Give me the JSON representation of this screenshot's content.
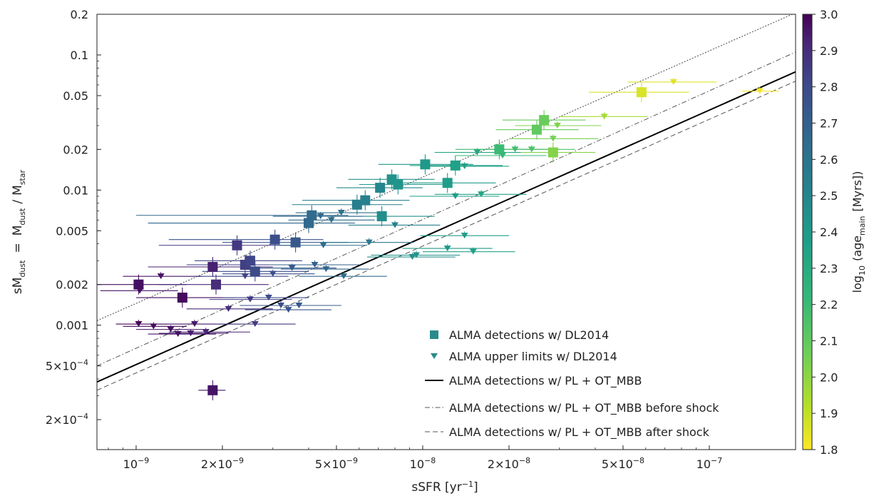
{
  "chart_data": {
    "type": "scatter",
    "xlabel": "sSFR [yr",
    "xlabel_sup": "−1",
    "xlabel_end": "]",
    "ylabel": {
      "a": "sM",
      "a_sub": "dust",
      "eq": "=",
      "b": "M",
      "b_sub": "dust",
      "slash": "/",
      "c": "M",
      "c_sub": "star"
    },
    "x_scale": "log",
    "y_scale": "log",
    "xlim": [
      7.3e-10,
      2e-07
    ],
    "ylim": [
      0.00012,
      0.2
    ],
    "x_ticks": [
      {
        "v": 1e-09,
        "base": "10",
        "sup": "−9",
        "coef": ""
      },
      {
        "v": 2e-09,
        "base": "10",
        "sup": "−9",
        "coef": "2×"
      },
      {
        "v": 5e-09,
        "base": "10",
        "sup": "−9",
        "coef": "5×"
      },
      {
        "v": 1e-08,
        "base": "10",
        "sup": "−8",
        "coef": ""
      },
      {
        "v": 2e-08,
        "base": "10",
        "sup": "−8",
        "coef": "2×"
      },
      {
        "v": 5e-08,
        "base": "10",
        "sup": "−8",
        "coef": "5×"
      },
      {
        "v": 1e-07,
        "base": "10",
        "sup": "−7",
        "coef": ""
      }
    ],
    "y_ticks": [
      {
        "v": 0.2,
        "label": "0.2"
      },
      {
        "v": 0.1,
        "label": "0.1"
      },
      {
        "v": 0.05,
        "label": "0.05"
      },
      {
        "v": 0.02,
        "label": "0.02"
      },
      {
        "v": 0.01,
        "label": "0.01"
      },
      {
        "v": 0.005,
        "label": "0.005"
      },
      {
        "v": 0.002,
        "label": "0.002"
      },
      {
        "v": 0.001,
        "label": "0.001"
      },
      {
        "v": 0.0005,
        "label": "5×10",
        "sup": "−4"
      },
      {
        "v": 0.0002,
        "label": "2×10",
        "sup": "−4"
      }
    ],
    "colorbar": {
      "label": "log",
      "label_sub": "10",
      "label_rest": "(age",
      "label_rest_sub": "main",
      "label_end": "[Myrs])",
      "min": 1.8,
      "max": 3.0,
      "colormap": "viridis_r",
      "ticks": [
        "3.0",
        "2.9",
        "2.8",
        "2.7",
        "2.6",
        "2.5",
        "2.4",
        "2.3",
        "2.2",
        "2.1",
        "2.0",
        "1.9",
        "1.8"
      ]
    },
    "lines": [
      {
        "name": "ALMA detections w/ PL + OT_MBB",
        "style": "solid",
        "color": "#000000",
        "points": [
          [
            7.3e-10,
            0.00038
          ],
          [
            2e-07,
            0.075
          ]
        ]
      },
      {
        "name": "ALMA detections w/ PL + OT_MBB before shock",
        "style": "dashdot",
        "color": "#555555",
        "points": [
          [
            7.3e-10,
            0.0005
          ],
          [
            2e-07,
            0.105
          ]
        ]
      },
      {
        "name": "ALMA detections w/ PL + OT_MBB after shock",
        "style": "dashed",
        "color": "#555555",
        "points": [
          [
            7.3e-10,
            0.00033
          ],
          [
            2e-07,
            0.064
          ]
        ]
      },
      {
        "name": "",
        "style": "dotted",
        "color": "#444444",
        "points": [
          [
            7.3e-10,
            0.00108
          ],
          [
            2e-07,
            0.205
          ]
        ]
      }
    ],
    "legend": {
      "placement": "lower-right",
      "entries": [
        {
          "marker": "square",
          "color": "#2a8a8a",
          "label": "ALMA detections w/ DL2014"
        },
        {
          "marker": "triangle",
          "color": "#2a8a8a",
          "label": "ALMA upper limits w/ DL2014"
        },
        {
          "marker": "solid",
          "label": "ALMA detections w/ PL + OT_MBB"
        },
        {
          "marker": "dashdot",
          "label": "ALMA detections w/ PL + OT_MBB before shock"
        },
        {
          "marker": "dashed",
          "label": "ALMA detections w/ PL + OT_MBB after shock"
        }
      ]
    },
    "series": [
      {
        "name": "ALMA detections w/ DL2014",
        "marker": "square",
        "points": [
          {
            "x": 1.02e-09,
            "y": 0.002,
            "c": 2.97,
            "xl": 7e-10,
            "xh": 1.5e-09
          },
          {
            "x": 1.45e-09,
            "y": 0.0016,
            "c": 2.98,
            "xl": 1e-09,
            "xh": 2.2e-09
          },
          {
            "x": 1.85e-09,
            "y": 0.0027,
            "c": 2.93,
            "xl": 1.1e-09,
            "xh": 3e-09
          },
          {
            "x": 1.9e-09,
            "y": 0.002,
            "c": 2.9,
            "xl": 1.2e-09,
            "xh": 2.9e-09
          },
          {
            "x": 2.25e-09,
            "y": 0.0039,
            "c": 2.86,
            "xl": 1.2e-09,
            "xh": 3.5e-09
          },
          {
            "x": 2.4e-09,
            "y": 0.0028,
            "c": 2.84,
            "xl": 1.5e-09,
            "xh": 3.6e-09
          },
          {
            "x": 2.5e-09,
            "y": 0.003,
            "c": 2.82,
            "xl": 1.6e-09,
            "xh": 3.8e-09
          },
          {
            "x": 2.6e-09,
            "y": 0.0025,
            "c": 2.8,
            "xl": 1.7e-09,
            "xh": 4e-09
          },
          {
            "x": 3.05e-09,
            "y": 0.0043,
            "c": 2.78,
            "xl": 1.3e-09,
            "xh": 4.5e-09
          },
          {
            "x": 3.6e-09,
            "y": 0.0041,
            "c": 2.74,
            "xl": 2e-09,
            "xh": 5.5e-09
          },
          {
            "x": 4.1e-09,
            "y": 0.0065,
            "c": 2.65,
            "xl": 1e-09,
            "xh": 5.5e-09
          },
          {
            "x": 4e-09,
            "y": 0.0057,
            "c": 2.66,
            "xl": 1.1e-09,
            "xh": 5.8e-09
          },
          {
            "x": 5.9e-09,
            "y": 0.0078,
            "c": 2.55,
            "xl": 3.5e-09,
            "xh": 8.5e-09
          },
          {
            "x": 6.3e-09,
            "y": 0.0084,
            "c": 2.53,
            "xl": 3.8e-09,
            "xh": 9e-09
          },
          {
            "x": 7.1e-09,
            "y": 0.0104,
            "c": 2.5,
            "xl": 5e-09,
            "xh": 1e-08
          },
          {
            "x": 7.2e-09,
            "y": 0.0064,
            "c": 2.46,
            "xl": 4.6e-09,
            "xh": 1.1e-08
          },
          {
            "x": 7.8e-09,
            "y": 0.012,
            "c": 2.44,
            "xl": 5.5e-09,
            "xh": 1.1e-08
          },
          {
            "x": 8.2e-09,
            "y": 0.011,
            "c": 2.42,
            "xl": 6e-09,
            "xh": 1.2e-08
          },
          {
            "x": 1.02e-08,
            "y": 0.0155,
            "c": 2.4,
            "xl": 7e-09,
            "xh": 1.5e-08
          },
          {
            "x": 1.22e-08,
            "y": 0.0113,
            "c": 2.38,
            "xl": 8.5e-09,
            "xh": 1.8e-08
          },
          {
            "x": 1.3e-08,
            "y": 0.0152,
            "c": 2.36,
            "xl": 9e-09,
            "xh": 1.9e-08
          },
          {
            "x": 1.85e-08,
            "y": 0.02,
            "c": 2.2,
            "xl": 1.3e-08,
            "xh": 2.6e-08
          },
          {
            "x": 2.5e-08,
            "y": 0.028,
            "c": 2.1,
            "xl": 1.8e-08,
            "xh": 3.5e-08
          },
          {
            "x": 2.65e-08,
            "y": 0.033,
            "c": 2.08,
            "xl": 1.9e-08,
            "xh": 3.7e-08
          },
          {
            "x": 2.85e-08,
            "y": 0.019,
            "c": 2.02,
            "xl": 2e-08,
            "xh": 4e-08
          },
          {
            "x": 5.8e-08,
            "y": 0.053,
            "c": 1.86,
            "xl": 3.8e-08,
            "xh": 8.5e-08
          },
          {
            "x": 1.85e-09,
            "y": 0.00033,
            "c": 2.96,
            "xl": 1.65e-09,
            "xh": 2.05e-09
          }
        ]
      },
      {
        "name": "ALMA upper limits w/ DL2014",
        "marker": "triangle",
        "points": [
          {
            "x": 1.03e-09,
            "y": 0.0018,
            "c": 2.97,
            "xl": 7.5e-10,
            "xh": 1.4e-09
          },
          {
            "x": 1.22e-09,
            "y": 0.0023,
            "c": 2.96,
            "xl": 9e-10,
            "xh": 1.7e-09
          },
          {
            "x": 1.02e-09,
            "y": 0.00102,
            "c": 2.99,
            "xl": 8.5e-10,
            "xh": 1.3e-09
          },
          {
            "x": 1.15e-09,
            "y": 0.00098,
            "c": 2.98,
            "xl": 9e-10,
            "xh": 1.5e-09
          },
          {
            "x": 1.32e-09,
            "y": 0.00093,
            "c": 2.97,
            "xl": 1e-09,
            "xh": 1.8e-09
          },
          {
            "x": 1.4e-09,
            "y": 0.00086,
            "c": 2.96,
            "xl": 1.1e-09,
            "xh": 1.9e-09
          },
          {
            "x": 1.6e-09,
            "y": 0.00102,
            "c": 2.95,
            "xl": 1.2e-09,
            "xh": 2.3e-09
          },
          {
            "x": 1.55e-09,
            "y": 0.00087,
            "c": 2.94,
            "xl": 1.2e-09,
            "xh": 2.1e-09
          },
          {
            "x": 1.75e-09,
            "y": 0.00089,
            "c": 2.92,
            "xl": 1.3e-09,
            "xh": 2.5e-09
          },
          {
            "x": 2.1e-09,
            "y": 0.00132,
            "c": 2.9,
            "xl": 1.5e-09,
            "xh": 3e-09
          },
          {
            "x": 2.5e-09,
            "y": 0.00155,
            "c": 2.86,
            "xl": 1.8e-09,
            "xh": 3.5e-09
          },
          {
            "x": 2.6e-09,
            "y": 0.00102,
            "c": 2.85,
            "xl": 1.9e-09,
            "xh": 3.6e-09
          },
          {
            "x": 2.9e-09,
            "y": 0.0016,
            "c": 2.8,
            "xl": 2e-09,
            "xh": 4e-09
          },
          {
            "x": 3.2e-09,
            "y": 0.0014,
            "c": 2.78,
            "xl": 2.3e-09,
            "xh": 4.5e-09
          },
          {
            "x": 3.4e-09,
            "y": 0.0013,
            "c": 2.76,
            "xl": 2.4e-09,
            "xh": 4.8e-09
          },
          {
            "x": 3.7e-09,
            "y": 0.0014,
            "c": 2.74,
            "xl": 2.6e-09,
            "xh": 5.2e-09
          },
          {
            "x": 2.4e-09,
            "y": 0.0023,
            "c": 2.82,
            "xl": 1.6e-09,
            "xh": 3.4e-09
          },
          {
            "x": 3e-09,
            "y": 0.0024,
            "c": 2.78,
            "xl": 2e-09,
            "xh": 4.2e-09
          },
          {
            "x": 3.5e-09,
            "y": 0.00265,
            "c": 2.74,
            "xl": 2.4e-09,
            "xh": 5e-09
          },
          {
            "x": 4.2e-09,
            "y": 0.0028,
            "c": 2.7,
            "xl": 2.9e-09,
            "xh": 6e-09
          },
          {
            "x": 4.6e-09,
            "y": 0.0026,
            "c": 2.68,
            "xl": 3.2e-09,
            "xh": 6.5e-09
          },
          {
            "x": 5.3e-09,
            "y": 0.0023,
            "c": 2.64,
            "xl": 3.7e-09,
            "xh": 7.5e-09
          },
          {
            "x": 4.4e-09,
            "y": 0.0064,
            "c": 2.66,
            "xl": 3e-09,
            "xh": 6.2e-09
          },
          {
            "x": 4.8e-09,
            "y": 0.006,
            "c": 2.63,
            "xl": 3.4e-09,
            "xh": 6.8e-09
          },
          {
            "x": 5.2e-09,
            "y": 0.0068,
            "c": 2.62,
            "xl": 3.6e-09,
            "xh": 7.3e-09
          },
          {
            "x": 4.5e-09,
            "y": 0.0039,
            "c": 2.64,
            "xl": 3.1e-09,
            "xh": 6.4e-09
          },
          {
            "x": 6.5e-09,
            "y": 0.0041,
            "c": 2.58,
            "xl": 4.5e-09,
            "xh": 9.3e-09
          },
          {
            "x": 8e-09,
            "y": 0.0055,
            "c": 2.53,
            "xl": 5.5e-09,
            "xh": 1.15e-08
          },
          {
            "x": 9.2e-09,
            "y": 0.0032,
            "c": 2.45,
            "xl": 6.4e-09,
            "xh": 1.3e-08
          },
          {
            "x": 9.5e-09,
            "y": 0.0033,
            "c": 2.44,
            "xl": 6.6e-09,
            "xh": 1.35e-08
          },
          {
            "x": 1.22e-08,
            "y": 0.0037,
            "c": 2.4,
            "xl": 8.5e-09,
            "xh": 1.75e-08
          },
          {
            "x": 1.5e-08,
            "y": 0.0035,
            "c": 2.36,
            "xl": 1e-08,
            "xh": 2.1e-08
          },
          {
            "x": 1.4e-08,
            "y": 0.0046,
            "c": 2.38,
            "xl": 9.8e-09,
            "xh": 2e-08
          },
          {
            "x": 1.3e-08,
            "y": 0.009,
            "c": 2.38,
            "xl": 9e-09,
            "xh": 1.85e-08
          },
          {
            "x": 1.6e-08,
            "y": 0.0093,
            "c": 2.34,
            "xl": 1.1e-08,
            "xh": 2.3e-08
          },
          {
            "x": 1.4e-08,
            "y": 0.015,
            "c": 2.36,
            "xl": 9.8e-09,
            "xh": 2e-08
          },
          {
            "x": 1.55e-08,
            "y": 0.019,
            "c": 2.32,
            "xl": 1.1e-08,
            "xh": 2.2e-08
          },
          {
            "x": 1.9e-08,
            "y": 0.018,
            "c": 2.22,
            "xl": 1.3e-08,
            "xh": 2.7e-08
          },
          {
            "x": 2.1e-08,
            "y": 0.02,
            "c": 2.18,
            "xl": 1.5e-08,
            "xh": 3e-08
          },
          {
            "x": 2.4e-08,
            "y": 0.02,
            "c": 2.15,
            "xl": 1.7e-08,
            "xh": 3.4e-08
          },
          {
            "x": 2.85e-08,
            "y": 0.024,
            "c": 2.05,
            "xl": 2e-08,
            "xh": 4.1e-08
          },
          {
            "x": 2.95e-08,
            "y": 0.03,
            "c": 2.03,
            "xl": 2.1e-08,
            "xh": 4.2e-08
          },
          {
            "x": 4.3e-08,
            "y": 0.035,
            "c": 1.95,
            "xl": 3e-08,
            "xh": 6.1e-08
          },
          {
            "x": 7.5e-08,
            "y": 0.063,
            "c": 1.85,
            "xl": 5.2e-08,
            "xh": 1.06e-07
          },
          {
            "x": 1.5e-07,
            "y": 0.054,
            "c": 1.81,
            "xl": 1.3e-07,
            "xh": 1.75e-07
          }
        ]
      }
    ]
  }
}
